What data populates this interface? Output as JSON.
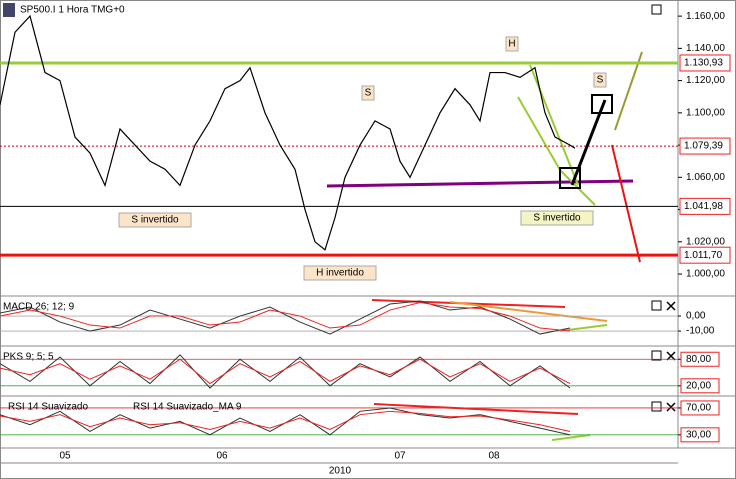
{
  "chart_data": [
    {
      "type": "line",
      "title": "SP500.I 1 Hora TMG+0",
      "x": [
        0,
        15,
        30,
        45,
        60,
        75,
        90,
        105,
        120,
        135,
        150,
        165,
        180,
        195,
        210,
        225,
        240,
        250,
        265,
        280,
        295,
        305,
        315,
        325,
        335,
        345,
        360,
        375,
        390,
        400,
        410,
        425,
        440,
        455,
        470,
        480,
        490,
        505,
        520,
        535,
        545,
        555,
        570,
        575
      ],
      "values": [
        1.105,
        1.15,
        1.16,
        1.125,
        1.12,
        1.085,
        1.075,
        1.055,
        1.09,
        1.08,
        1.07,
        1.065,
        1.055,
        1.08,
        1.095,
        1.115,
        1.12,
        1.128,
        1.1,
        1.08,
        1.065,
        1.04,
        1.02,
        1.015,
        1.035,
        1.06,
        1.08,
        1.095,
        1.09,
        1.07,
        1.06,
        1.08,
        1.1,
        1.115,
        1.105,
        1.095,
        1.125,
        1.125,
        1.122,
        1.128,
        1.1,
        1.085,
        1.08,
        1.078
      ],
      "color": "#000000",
      "xlim": [
        0,
        678
      ],
      "ylim": [
        0.987,
        1.17
      ],
      "yticks": [
        {
          "value": 1.0,
          "label": "1.000,00"
        },
        {
          "value": 1.02,
          "label": "1.020,00"
        },
        {
          "value": 1.04,
          "label": "1.040,00"
        },
        {
          "value": 1.06,
          "label": "1.060,00"
        },
        {
          "value": 1.08,
          "label": "1.080,00"
        },
        {
          "value": 1.1,
          "label": "1.100,00"
        },
        {
          "value": 1.12,
          "label": "1.120,00"
        },
        {
          "value": 1.14,
          "label": "1.140,00"
        },
        {
          "value": 1.16,
          "label": "1.160,00"
        }
      ],
      "levels": [
        {
          "value": 1.13093,
          "label": "1.130,93",
          "color": "#99cc33"
        },
        {
          "value": 1.07939,
          "label": "1.079,39",
          "color": "#cc0000"
        },
        {
          "value": 1.04198,
          "label": "1.041,98",
          "color": "#000000"
        },
        {
          "value": 1.0117,
          "label": "1.011,70",
          "color": "#ee1111"
        }
      ],
      "annotations": [
        "S invertido",
        "S",
        "H",
        "S invertido",
        "H invertido",
        "S"
      ],
      "xticks": [
        {
          "value": 65,
          "label": "05"
        },
        {
          "value": 222,
          "label": "06"
        },
        {
          "value": 400,
          "label": "07"
        },
        {
          "value": 494,
          "label": "08"
        }
      ],
      "xlabel": "2010"
    },
    {
      "type": "line",
      "title": "MACD 26; 12; 9",
      "x": [
        0,
        30,
        60,
        90,
        120,
        150,
        180,
        210,
        240,
        270,
        300,
        330,
        360,
        390,
        420,
        450,
        480,
        510,
        540,
        570
      ],
      "series": [
        {
          "color": "#333333",
          "values": [
            2,
            6,
            -4,
            -10,
            -6,
            4,
            -2,
            -8,
            0,
            6,
            -4,
            -12,
            -2,
            8,
            10,
            4,
            6,
            -2,
            -12,
            -8
          ]
        },
        {
          "color": "#ee2222",
          "values": [
            0,
            4,
            0,
            -6,
            -8,
            0,
            0,
            -6,
            -4,
            4,
            0,
            -8,
            -6,
            4,
            9,
            6,
            5,
            0,
            -8,
            -10
          ]
        }
      ],
      "ylim": [
        -19.3,
        12.7
      ],
      "yticks": [
        {
          "value": 0,
          "label": "0,00"
        },
        {
          "value": -10,
          "label": "-10,00"
        }
      ]
    },
    {
      "type": "line",
      "title": "PKS 9; 5; 5",
      "x": [
        0,
        30,
        60,
        90,
        120,
        150,
        180,
        210,
        240,
        270,
        300,
        330,
        360,
        390,
        420,
        450,
        480,
        510,
        540,
        570
      ],
      "series": [
        {
          "color": "#333333",
          "values": [
            70,
            30,
            85,
            20,
            75,
            25,
            90,
            15,
            80,
            30,
            85,
            20,
            70,
            40,
            85,
            30,
            75,
            20,
            65,
            15
          ]
        },
        {
          "color": "#ee2222",
          "values": [
            60,
            45,
            70,
            35,
            65,
            35,
            80,
            25,
            70,
            40,
            75,
            30,
            65,
            45,
            80,
            40,
            70,
            30,
            60,
            25
          ]
        }
      ],
      "ylim": [
        -0.8,
        107.7
      ],
      "yticks": [
        {
          "value": 80,
          "label": "80,00"
        },
        {
          "value": 20,
          "label": "20,00"
        }
      ]
    },
    {
      "type": "line",
      "title": "RSI 14 Suavizado",
      "x": [
        0,
        30,
        60,
        90,
        120,
        150,
        180,
        210,
        240,
        270,
        300,
        330,
        360,
        390,
        420,
        450,
        480,
        510,
        540,
        570
      ],
      "series": [
        {
          "name": "RSI 14 Suavizado",
          "color": "#333333",
          "values": [
            60,
            45,
            65,
            35,
            60,
            40,
            50,
            30,
            55,
            35,
            60,
            30,
            65,
            70,
            60,
            55,
            60,
            50,
            40,
            30
          ]
        },
        {
          "name": "RSI 14 Suavizado_MA 9",
          "color": "#ee2222",
          "values": [
            58,
            50,
            60,
            42,
            55,
            45,
            48,
            38,
            50,
            40,
            55,
            38,
            60,
            65,
            62,
            57,
            58,
            52,
            45,
            35
          ]
        }
      ],
      "ylim": [
        11.9,
        86.3
      ],
      "yticks": [
        {
          "value": 70,
          "label": "70,00"
        },
        {
          "value": 30,
          "label": "30,00"
        }
      ]
    }
  ]
}
